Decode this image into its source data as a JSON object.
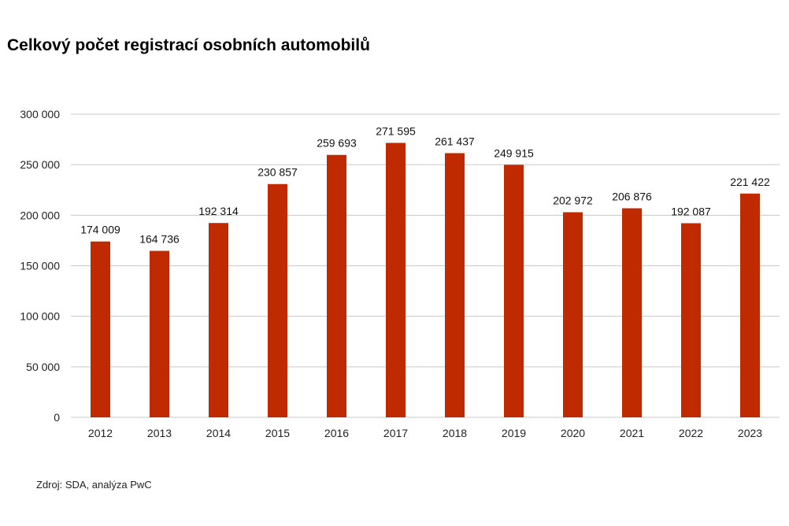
{
  "chart_data": {
    "type": "bar",
    "title": "Celkový počet registrací osobních automobilů",
    "categories": [
      "2012",
      "2013",
      "2014",
      "2015",
      "2016",
      "2017",
      "2018",
      "2019",
      "2020",
      "2021",
      "2022",
      "2023"
    ],
    "values": [
      174009,
      164736,
      192314,
      230857,
      259693,
      271595,
      261437,
      249915,
      202972,
      206876,
      192087,
      221422
    ],
    "data_labels": [
      "174 009",
      "164 736",
      "192 314",
      "230 857",
      "259 693",
      "271 595",
      "261 437",
      "249 915",
      "202 972",
      "206 876",
      "192 087",
      "221 422"
    ],
    "y_ticks": [
      0,
      50000,
      100000,
      150000,
      200000,
      250000,
      300000
    ],
    "y_tick_labels": [
      "0",
      "50 000",
      "100 000",
      "150 000",
      "200 000",
      "250 000",
      "300 000"
    ],
    "ylim": [
      0,
      300000
    ],
    "xlabel": "",
    "ylabel": "",
    "grid": true,
    "legend": "none",
    "bar_color": "#BF2A00",
    "grid_color": "#C8C8C8"
  },
  "source": "Zdroj: SDA, analýza PwC"
}
